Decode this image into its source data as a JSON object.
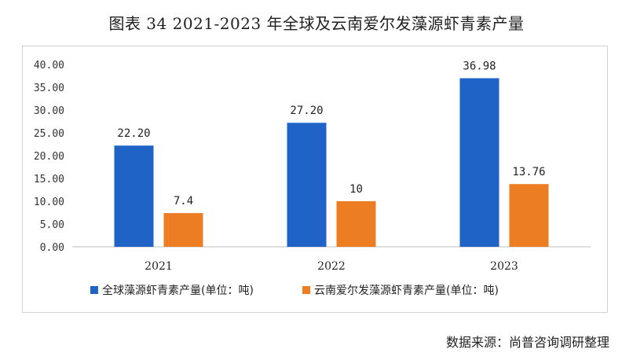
{
  "title": "图表 34 2021-2023 年全球及云南爱尔发藻源虾青素产量",
  "source": "数据来源：尚普咨询调研整理",
  "colors": {
    "series1": "#1f63c6",
    "series2": "#ed7d22",
    "axis": "#bfbfbf"
  },
  "chart_data": {
    "type": "bar",
    "categories": [
      "2021",
      "2022",
      "2023"
    ],
    "series": [
      {
        "name": "全球藻源虾青素产量(单位：吨)",
        "values": [
          22.2,
          27.2,
          36.98
        ],
        "labels": [
          "22.20",
          "27.20",
          "36.98"
        ]
      },
      {
        "name": "云南爱尔发藻源虾青素产量(单位：吨)",
        "values": [
          7.4,
          10,
          13.76
        ],
        "labels": [
          "7.4",
          "10",
          "13.76"
        ]
      }
    ],
    "ylim": [
      0,
      40
    ],
    "yticks": [
      "0.00",
      "5.00",
      "10.00",
      "15.00",
      "20.00",
      "25.00",
      "30.00",
      "35.00",
      "40.00"
    ],
    "grid": false,
    "legend": "bottom"
  }
}
